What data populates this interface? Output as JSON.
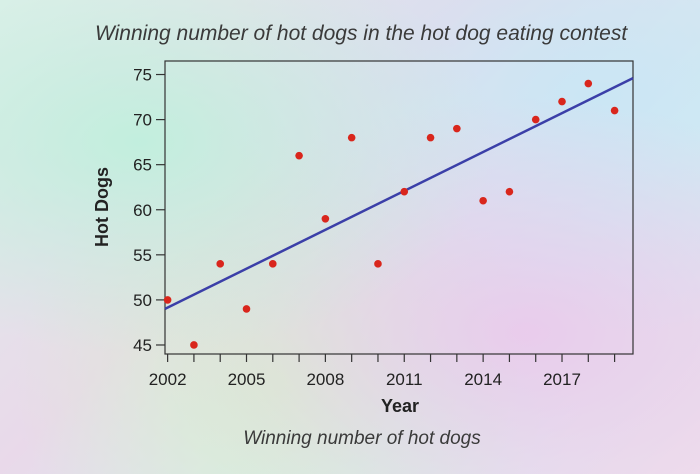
{
  "chart_data": {
    "type": "scatter",
    "title": "Winning number of hot dogs in the hot dog eating contest",
    "subtitle": "Winning number of hot dogs",
    "xlabel": "Year",
    "ylabel": "Hot Dogs",
    "xlim": [
      2001.9,
      2019.7
    ],
    "ylim": [
      44,
      76.5
    ],
    "xticks": [
      2002,
      2005,
      2008,
      2011,
      2014,
      2017
    ],
    "xminor": [
      2002,
      2003,
      2004,
      2005,
      2006,
      2007,
      2008,
      2009,
      2010,
      2011,
      2012,
      2013,
      2014,
      2015,
      2016,
      2017,
      2018,
      2019
    ],
    "yticks": [
      45,
      50,
      55,
      60,
      65,
      70,
      75
    ],
    "points": [
      {
        "x": 2002,
        "y": 50
      },
      {
        "x": 2003,
        "y": 45
      },
      {
        "x": 2004,
        "y": 54
      },
      {
        "x": 2005,
        "y": 49
      },
      {
        "x": 2006,
        "y": 54
      },
      {
        "x": 2007,
        "y": 66
      },
      {
        "x": 2008,
        "y": 59
      },
      {
        "x": 2009,
        "y": 68
      },
      {
        "x": 2010,
        "y": 54
      },
      {
        "x": 2011,
        "y": 62
      },
      {
        "x": 2012,
        "y": 68
      },
      {
        "x": 2013,
        "y": 69
      },
      {
        "x": 2014,
        "y": 61
      },
      {
        "x": 2015,
        "y": 62
      },
      {
        "x": 2016,
        "y": 70
      },
      {
        "x": 2017,
        "y": 72
      },
      {
        "x": 2018,
        "y": 74
      },
      {
        "x": 2019,
        "y": 71
      }
    ],
    "trendline": {
      "x": [
        2001.9,
        2019.7
      ],
      "y": [
        49.0,
        74.6
      ]
    },
    "grid": false,
    "colors": {
      "points": "#d9261c",
      "trendline": "#3b3fa8",
      "axes": "#333333"
    }
  }
}
